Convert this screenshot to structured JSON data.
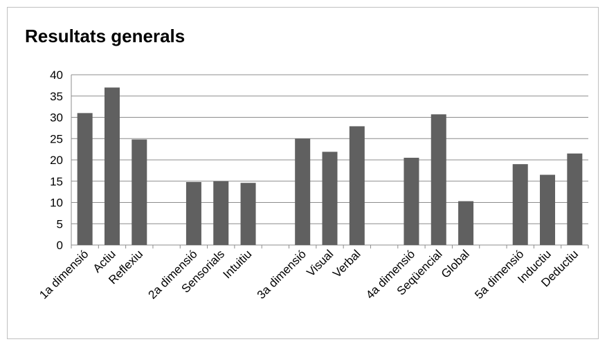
{
  "chart_data": {
    "type": "bar",
    "title": "Resultats generals",
    "xlabel": "",
    "ylabel": "",
    "ylim": [
      0,
      40
    ],
    "yticks": [
      "0",
      "5",
      "10",
      "15",
      "20",
      "25",
      "30",
      "35",
      "40"
    ],
    "grid": true,
    "bar_color": "#606060",
    "categories": [
      "1a dimensió",
      "Actiu",
      "Reflexiu",
      "",
      "2a dimensió",
      "Sensorials",
      "Intuitiu",
      "",
      "3a dimensió",
      "Visual",
      "Verbal",
      "",
      "4a dimensió",
      "Seqüencial",
      "Global",
      "",
      "5a dimensió",
      "Inductiu",
      "Deductiu"
    ],
    "values": [
      31,
      37,
      24.8,
      null,
      14.8,
      15,
      14.6,
      null,
      25,
      21.9,
      27.9,
      null,
      20.5,
      30.7,
      10.3,
      null,
      19,
      16.5,
      21.5
    ]
  }
}
